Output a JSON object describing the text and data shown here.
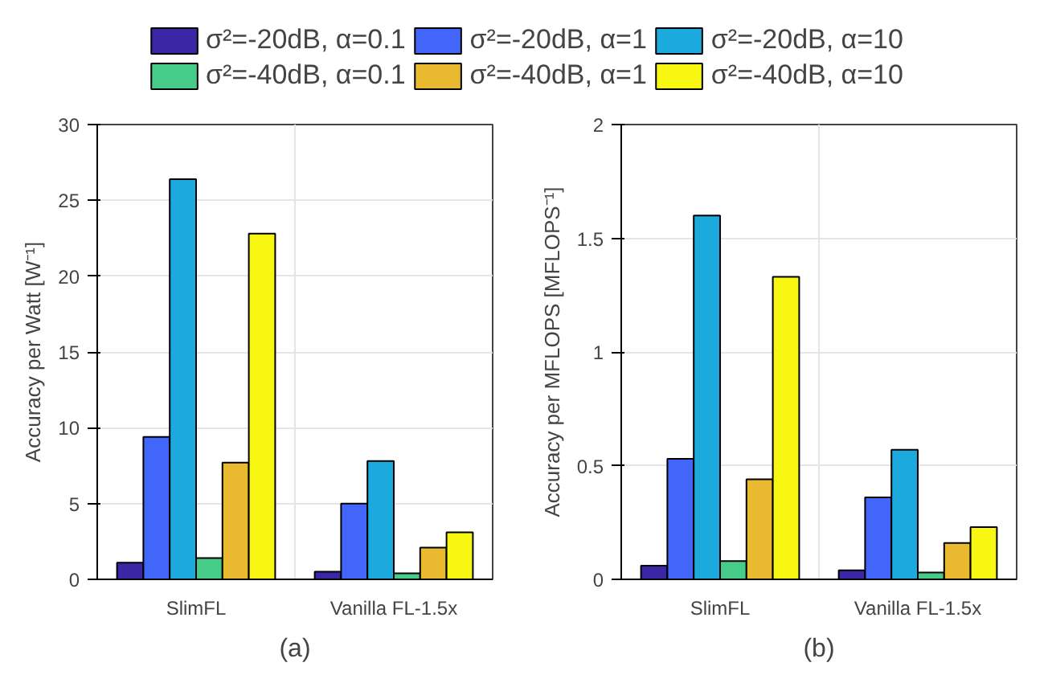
{
  "chart_data": [
    {
      "type": "bar",
      "categories": [
        "SlimFL",
        "Vanilla FL-1.5x"
      ],
      "ylabel": "Accuracy per Watt [W⁻¹]",
      "ylim": [
        0,
        30
      ],
      "yticks": [
        0,
        5,
        10,
        15,
        20,
        25,
        30
      ],
      "grid": true,
      "legend": "top",
      "annotations": [
        "(a)"
      ],
      "series": [
        {
          "name": "σ²=-20dB, α=0.1",
          "color": "#3b27a6",
          "values": [
            1.1,
            0.5
          ]
        },
        {
          "name": "σ²=-20dB, α=1",
          "color": "#4266fa",
          "values": [
            9.4,
            5.0
          ]
        },
        {
          "name": "σ²=-20dB, α=10",
          "color": "#1ba9de",
          "values": [
            26.4,
            7.8
          ]
        },
        {
          "name": "σ²=-40dB, α=0.1",
          "color": "#47cb88",
          "values": [
            1.4,
            0.4
          ]
        },
        {
          "name": "σ²=-40dB, α=1",
          "color": "#e9b92f",
          "values": [
            7.7,
            2.1
          ]
        },
        {
          "name": "σ²=-40dB, α=10",
          "color": "#f7f712",
          "values": [
            22.8,
            3.1
          ]
        }
      ]
    },
    {
      "type": "bar",
      "categories": [
        "SlimFL",
        "Vanilla FL-1.5x"
      ],
      "ylabel": "Accuracy per MFLOPS [MFLOPS⁻¹]",
      "ylim": [
        0,
        2
      ],
      "yticks": [
        0,
        0.5,
        1,
        1.5,
        2
      ],
      "grid": true,
      "legend": "top",
      "annotations": [
        "(b)"
      ],
      "series": [
        {
          "name": "σ²=-20dB, α=0.1",
          "color": "#3b27a6",
          "values": [
            0.06,
            0.04
          ]
        },
        {
          "name": "σ²=-20dB, α=1",
          "color": "#4266fa",
          "values": [
            0.53,
            0.36
          ]
        },
        {
          "name": "σ²=-20dB, α=10",
          "color": "#1ba9de",
          "values": [
            1.6,
            0.57
          ]
        },
        {
          "name": "σ²=-40dB, α=0.1",
          "color": "#47cb88",
          "values": [
            0.08,
            0.03
          ]
        },
        {
          "name": "σ²=-40dB, α=1",
          "color": "#e9b92f",
          "values": [
            0.44,
            0.16
          ]
        },
        {
          "name": "σ²=-40dB, α=10",
          "color": "#f7f712",
          "values": [
            1.33,
            0.23
          ]
        }
      ]
    }
  ]
}
